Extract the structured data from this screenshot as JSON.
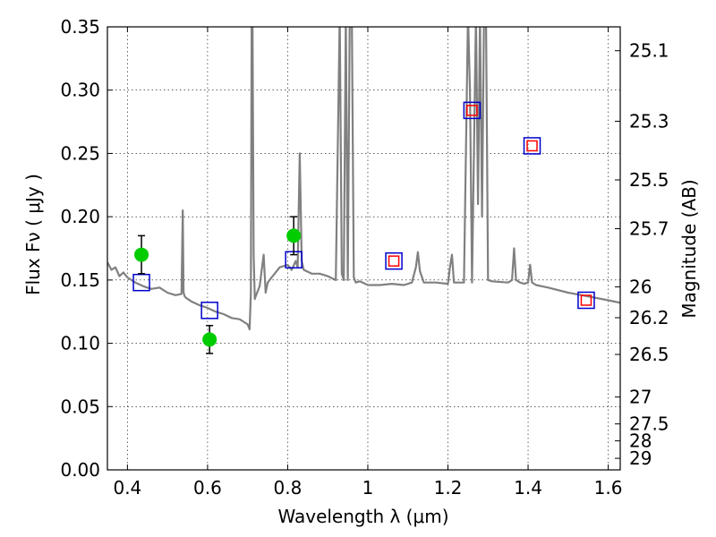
{
  "chart_data": {
    "type": "scatter",
    "xlabel": "Wavelength  λ (μm)",
    "ylabel": "Flux  Fν  ( μJy )",
    "y2label": "Magnitude (AB)",
    "xlim": [
      0.35,
      1.63
    ],
    "ylim": [
      0.0,
      0.35
    ],
    "grid": true,
    "x_ticks": [
      0.4,
      0.6,
      0.8,
      1.0,
      1.2,
      1.4,
      1.6
    ],
    "x_tick_labels": [
      "0.4",
      "0.6",
      "0.8",
      "1",
      "1.2",
      "1.4",
      "1.6"
    ],
    "y_ticks": [
      0.0,
      0.05,
      0.1,
      0.15,
      0.2,
      0.25,
      0.3,
      0.35
    ],
    "y_tick_labels": [
      "0.00",
      "0.05",
      "0.10",
      "0.15",
      "0.20",
      "0.25",
      "0.30",
      "0.35"
    ],
    "y2_ticks": [
      25.1,
      25.3,
      25.5,
      25.7,
      26,
      26.2,
      26.5,
      27,
      27.5,
      28,
      29
    ],
    "y2_tick_labels": [
      "25.1",
      "25.3",
      "25.5",
      "25.7",
      "26",
      "26.2",
      "26.5",
      "27",
      "27.5",
      "28",
      "29"
    ],
    "y2_zero_point": 23.9,
    "series": [
      {
        "kind": "line",
        "color": "#808080",
        "x": [
          0.35,
          0.36,
          0.37,
          0.38,
          0.39,
          0.4,
          0.42,
          0.44,
          0.46,
          0.48,
          0.5,
          0.52,
          0.535,
          0.538,
          0.54,
          0.543,
          0.546,
          0.56,
          0.58,
          0.6,
          0.62,
          0.64,
          0.66,
          0.68,
          0.69,
          0.7,
          0.705,
          0.708,
          0.71,
          0.712,
          0.715,
          0.718,
          0.72,
          0.73,
          0.74,
          0.745,
          0.75,
          0.76,
          0.78,
          0.8,
          0.81,
          0.82,
          0.825,
          0.83,
          0.835,
          0.84,
          0.86,
          0.88,
          0.9,
          0.92,
          0.93,
          0.935,
          0.94,
          0.945,
          0.95,
          0.955,
          0.96,
          0.965,
          0.97,
          0.98,
          1.0,
          1.03,
          1.06,
          1.09,
          1.11,
          1.12,
          1.125,
          1.13,
          1.14,
          1.17,
          1.2,
          1.205,
          1.21,
          1.215,
          1.22,
          1.24,
          1.25,
          1.255,
          1.26,
          1.27,
          1.275,
          1.28,
          1.285,
          1.29,
          1.295,
          1.3,
          1.31,
          1.35,
          1.36,
          1.365,
          1.37,
          1.38,
          1.39,
          1.4,
          1.405,
          1.41,
          1.42,
          1.45,
          1.5,
          1.55,
          1.6,
          1.63
        ],
        "y": [
          0.164,
          0.158,
          0.16,
          0.153,
          0.156,
          0.152,
          0.148,
          0.145,
          0.143,
          0.144,
          0.14,
          0.138,
          0.139,
          0.205,
          0.14,
          0.137,
          0.136,
          0.133,
          0.13,
          0.128,
          0.125,
          0.123,
          0.12,
          0.119,
          0.117,
          0.115,
          0.111,
          0.14,
          0.36,
          0.36,
          0.17,
          0.135,
          0.137,
          0.145,
          0.17,
          0.14,
          0.148,
          0.152,
          0.16,
          0.162,
          0.158,
          0.165,
          0.16,
          0.25,
          0.165,
          0.158,
          0.155,
          0.155,
          0.153,
          0.15,
          0.36,
          0.155,
          0.15,
          0.36,
          0.15,
          0.36,
          0.36,
          0.152,
          0.148,
          0.149,
          0.146,
          0.146,
          0.147,
          0.146,
          0.148,
          0.16,
          0.172,
          0.157,
          0.148,
          0.148,
          0.147,
          0.16,
          0.17,
          0.148,
          0.148,
          0.148,
          0.36,
          0.3,
          0.148,
          0.36,
          0.21,
          0.36,
          0.2,
          0.36,
          0.36,
          0.15,
          0.149,
          0.148,
          0.15,
          0.175,
          0.15,
          0.148,
          0.147,
          0.148,
          0.162,
          0.148,
          0.146,
          0.144,
          0.14,
          0.137,
          0.134,
          0.132
        ]
      },
      {
        "kind": "square",
        "color": "#0000cc",
        "size": 18,
        "x": [
          0.435,
          0.605,
          0.815,
          1.065,
          1.26,
          1.41,
          1.545
        ],
        "y": [
          0.148,
          0.126,
          0.166,
          0.165,
          0.284,
          0.256,
          0.134
        ]
      },
      {
        "kind": "square",
        "color": "#ff0000",
        "size": 11,
        "x": [
          1.065,
          1.26,
          1.41,
          1.545
        ],
        "y": [
          0.165,
          0.284,
          0.256,
          0.134
        ]
      },
      {
        "kind": "point-errorbar",
        "color": "#00cc00",
        "x": [
          0.435,
          0.605,
          0.815
        ],
        "y": [
          0.17,
          0.103,
          0.185
        ],
        "err": [
          0.015,
          0.011,
          0.015
        ]
      }
    ]
  }
}
